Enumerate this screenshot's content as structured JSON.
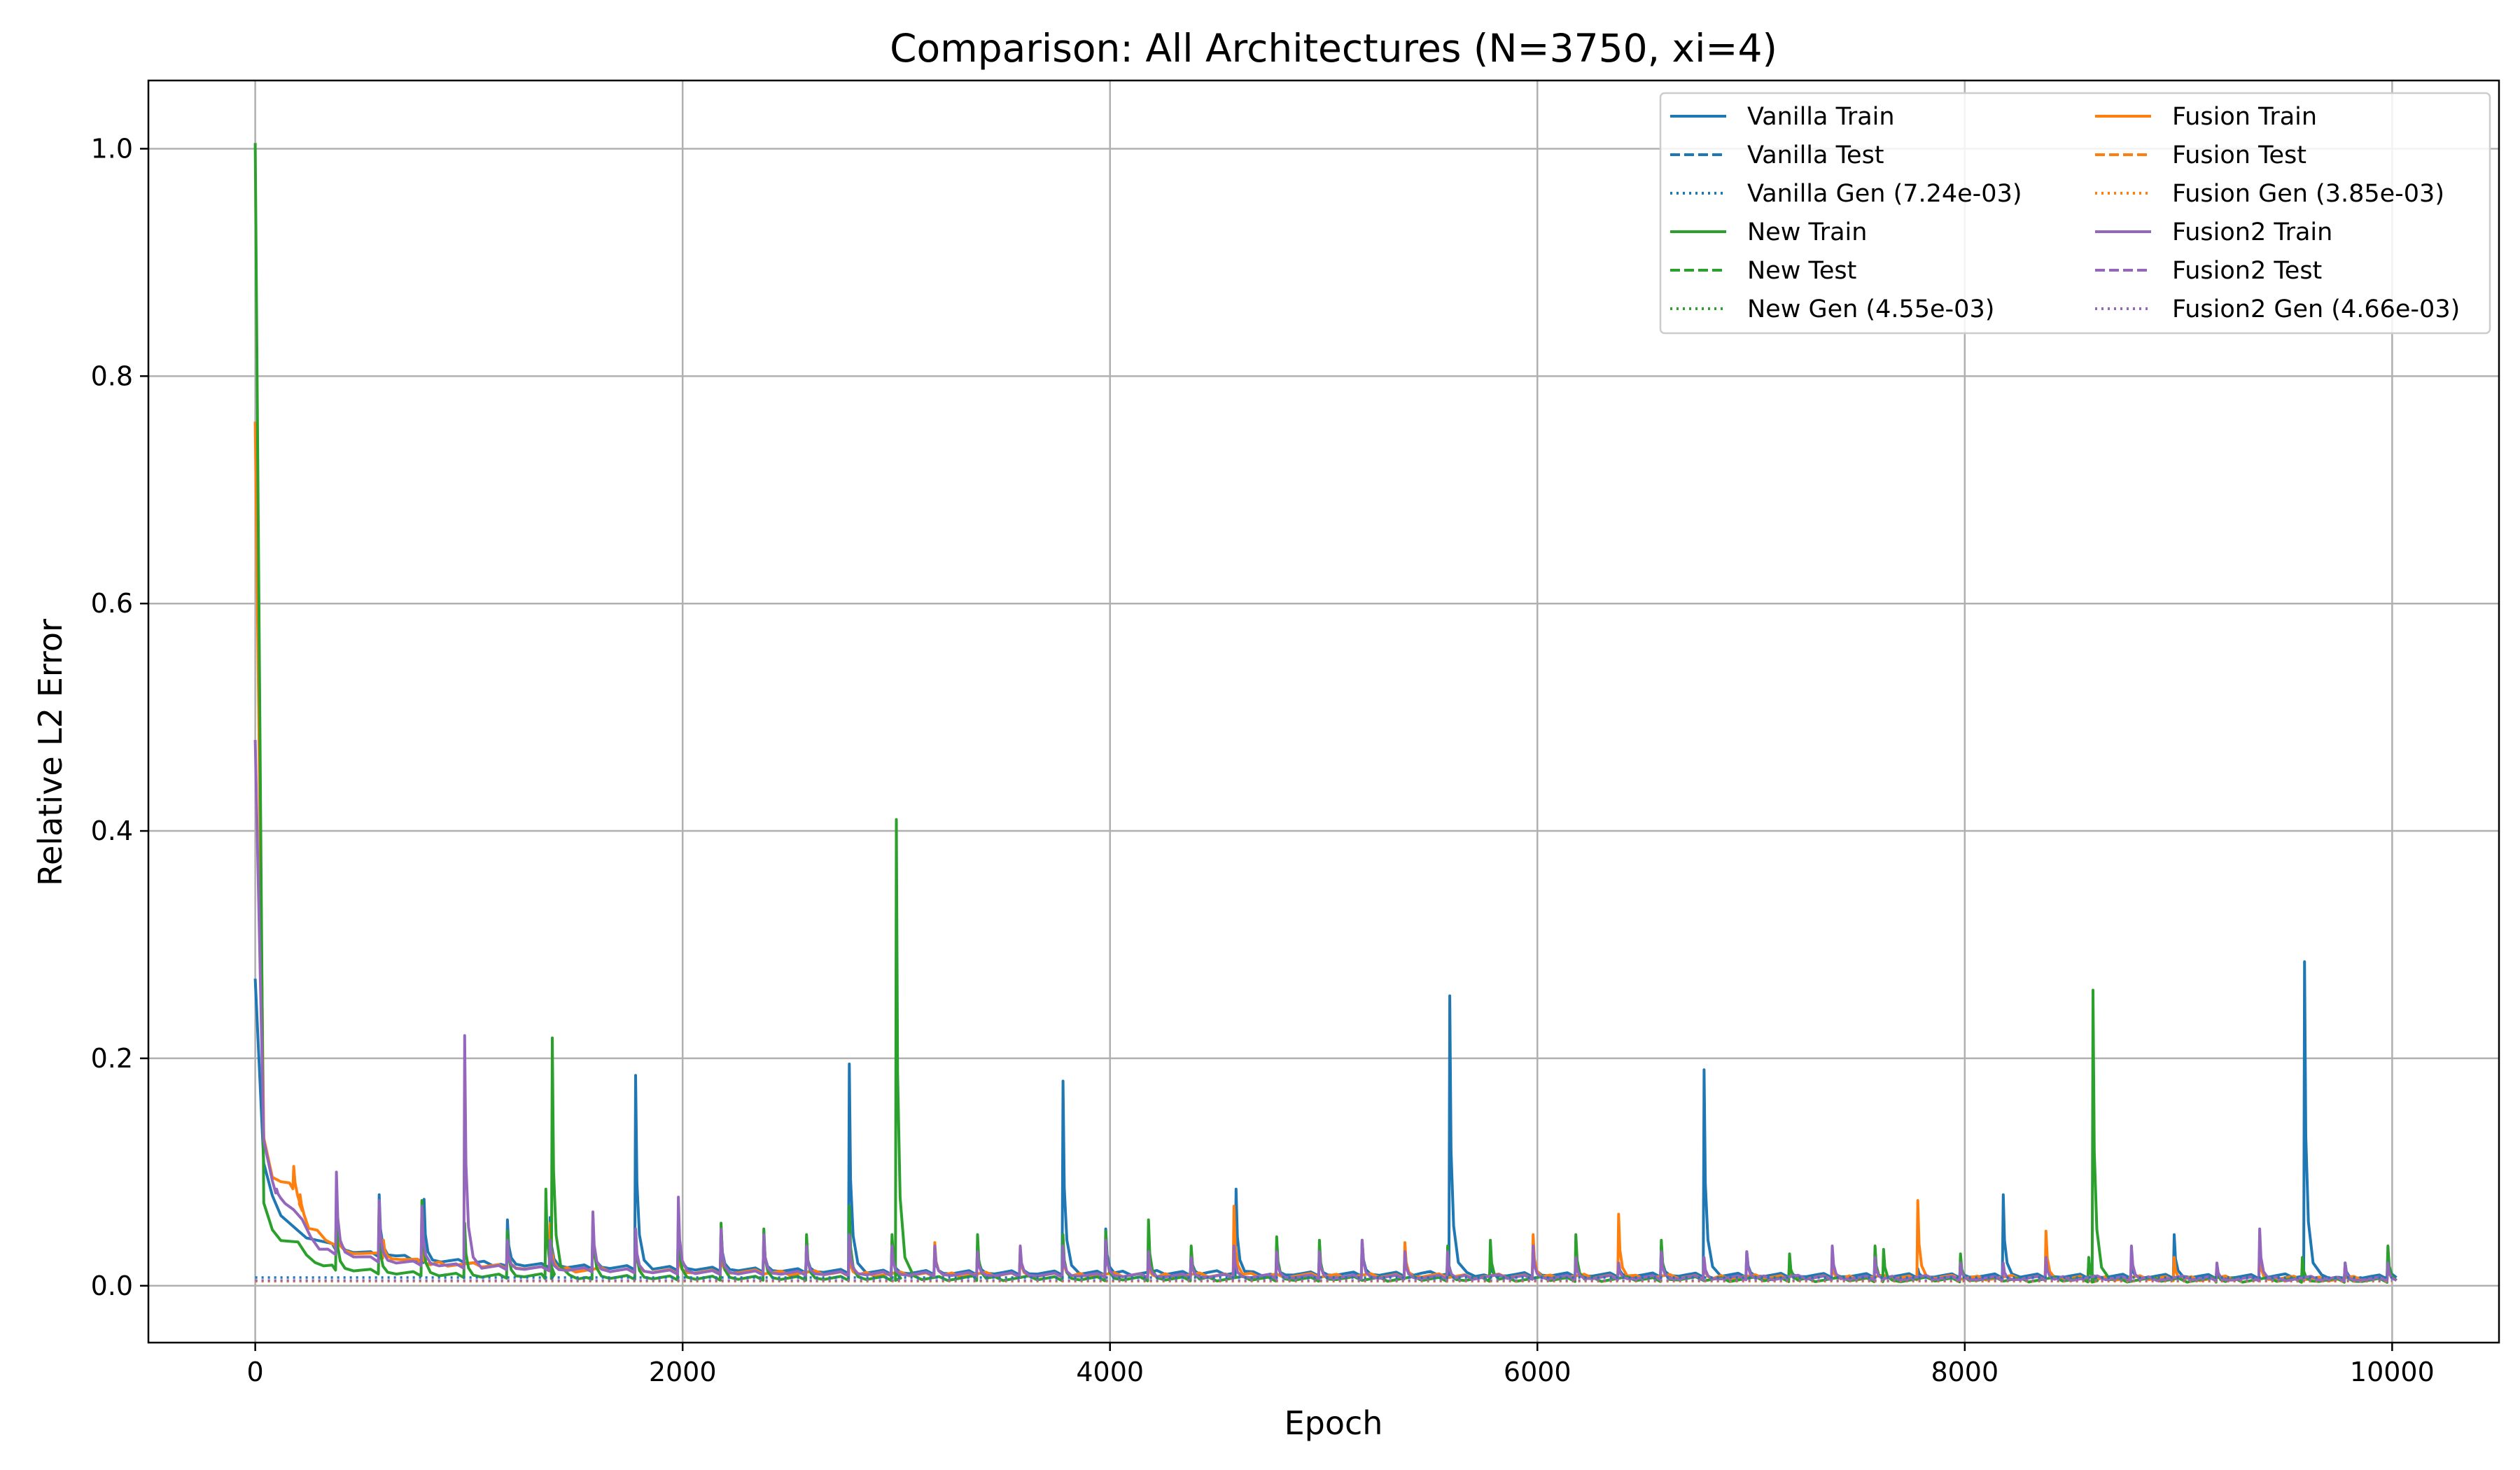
{
  "chart_data": {
    "type": "line",
    "title": "Comparison: All Architectures (N=3750, xi=4)",
    "xlabel": "Epoch",
    "ylabel": "Relative L2 Error",
    "xlim": [
      -500,
      10500
    ],
    "ylim": [
      -0.05,
      1.06
    ],
    "xticks": [
      0,
      2000,
      4000,
      6000,
      8000,
      10000
    ],
    "xtick_labels": [
      "0",
      "2000",
      "4000",
      "6000",
      "8000",
      "10000"
    ],
    "yticks": [
      0.0,
      0.2,
      0.4,
      0.6,
      0.8,
      1.0
    ],
    "ytick_labels": [
      "0.0",
      "0.2",
      "0.4",
      "0.6",
      "0.8",
      "1.0"
    ],
    "grid": true,
    "legend_position": "top-right",
    "legend_columns": 2,
    "colors": {
      "vanilla": "#1f77b4",
      "fusion": "#ff7f0e",
      "new": "#2ca02c",
      "fusion2": "#9467bd"
    },
    "legend": [
      {
        "label": "Vanilla Train",
        "color": "#1f77b4",
        "style": "solid"
      },
      {
        "label": "Vanilla Test",
        "color": "#1f77b4",
        "style": "dashed"
      },
      {
        "label": "Vanilla Gen (7.24e-03)",
        "color": "#1f77b4",
        "style": "dotted"
      },
      {
        "label": "New Train",
        "color": "#2ca02c",
        "style": "solid"
      },
      {
        "label": "New Test",
        "color": "#2ca02c",
        "style": "dashed"
      },
      {
        "label": "New Gen (4.55e-03)",
        "color": "#2ca02c",
        "style": "dotted"
      },
      {
        "label": "Fusion Train",
        "color": "#ff7f0e",
        "style": "solid"
      },
      {
        "label": "Fusion Test",
        "color": "#ff7f0e",
        "style": "dashed"
      },
      {
        "label": "Fusion Gen (3.85e-03)",
        "color": "#ff7f0e",
        "style": "dotted"
      },
      {
        "label": "Fusion2 Train",
        "color": "#9467bd",
        "style": "solid"
      },
      {
        "label": "Fusion2 Test",
        "color": "#9467bd",
        "style": "dashed"
      },
      {
        "label": "Fusion2 Gen (4.66e-03)",
        "color": "#9467bd",
        "style": "dotted"
      }
    ],
    "series": [
      {
        "name": "Vanilla Train",
        "color": "#1f77b4",
        "style": "solid",
        "start": 0.27,
        "early": [
          [
            10,
            0.15
          ],
          [
            50,
            0.09
          ],
          [
            100,
            0.065
          ],
          [
            200,
            0.045
          ],
          [
            400,
            0.03
          ],
          [
            800,
            0.02
          ],
          [
            1500,
            0.015
          ],
          [
            3000,
            0.01
          ],
          [
            6000,
            0.008
          ],
          [
            10000,
            0.006
          ]
        ],
        "spikes": [
          [
            380,
            0.07
          ],
          [
            580,
            0.08
          ],
          [
            790,
            0.076
          ],
          [
            1180,
            0.058
          ],
          [
            1380,
            0.06
          ],
          [
            1580,
            0.05
          ],
          [
            1780,
            0.185
          ],
          [
            1980,
            0.055
          ],
          [
            2180,
            0.05
          ],
          [
            2380,
            0.04
          ],
          [
            2580,
            0.035
          ],
          [
            2780,
            0.195
          ],
          [
            2980,
            0.04
          ],
          [
            3180,
            0.03
          ],
          [
            3380,
            0.035
          ],
          [
            3580,
            0.03
          ],
          [
            3780,
            0.18
          ],
          [
            3980,
            0.05
          ],
          [
            4380,
            0.03
          ],
          [
            4590,
            0.085
          ],
          [
            4780,
            0.025
          ],
          [
            4980,
            0.025
          ],
          [
            5180,
            0.04
          ],
          [
            5380,
            0.025
          ],
          [
            5590,
            0.255
          ],
          [
            5780,
            0.02
          ],
          [
            5980,
            0.035
          ],
          [
            6180,
            0.02
          ],
          [
            6380,
            0.02
          ],
          [
            6580,
            0.035
          ],
          [
            6780,
            0.19
          ],
          [
            6980,
            0.03
          ],
          [
            7180,
            0.02
          ],
          [
            7380,
            0.02
          ],
          [
            7580,
            0.02
          ],
          [
            7780,
            0.015
          ],
          [
            7980,
            0.02
          ],
          [
            8180,
            0.08
          ],
          [
            8380,
            0.03
          ],
          [
            8580,
            0.02
          ],
          [
            8780,
            0.02
          ],
          [
            8980,
            0.045
          ],
          [
            9180,
            0.015
          ],
          [
            9380,
            0.03
          ],
          [
            9590,
            0.285
          ],
          [
            9780,
            0.02
          ],
          [
            9980,
            0.03
          ]
        ]
      },
      {
        "name": "Fusion Train",
        "color": "#ff7f0e",
        "style": "solid",
        "start": 0.76,
        "early": [
          [
            10,
            0.22
          ],
          [
            50,
            0.1
          ],
          [
            100,
            0.09
          ],
          [
            180,
            0.085
          ],
          [
            250,
            0.05
          ],
          [
            400,
            0.03
          ],
          [
            800,
            0.018
          ],
          [
            1500,
            0.012
          ],
          [
            3000,
            0.008
          ],
          [
            6000,
            0.006
          ],
          [
            10000,
            0.004
          ]
        ],
        "spikes": [
          [
            180,
            0.105
          ],
          [
            210,
            0.08
          ],
          [
            380,
            0.06
          ],
          [
            600,
            0.04
          ],
          [
            780,
            0.03
          ],
          [
            1180,
            0.04
          ],
          [
            1380,
            0.055
          ],
          [
            1780,
            0.04
          ],
          [
            1980,
            0.03
          ],
          [
            2180,
            0.03
          ],
          [
            2780,
            0.03
          ],
          [
            3180,
            0.038
          ],
          [
            3580,
            0.03
          ],
          [
            3780,
            0.03
          ],
          [
            4180,
            0.02
          ],
          [
            4580,
            0.07
          ],
          [
            5380,
            0.038
          ],
          [
            5980,
            0.045
          ],
          [
            6380,
            0.063
          ],
          [
            6780,
            0.02
          ],
          [
            7180,
            0.015
          ],
          [
            7380,
            0.02
          ],
          [
            7780,
            0.075
          ],
          [
            8380,
            0.048
          ],
          [
            8580,
            0.02
          ],
          [
            8980,
            0.025
          ],
          [
            9380,
            0.03
          ],
          [
            9980,
            0.02
          ]
        ]
      },
      {
        "name": "New Train",
        "color": "#2ca02c",
        "style": "solid",
        "start": 1.005,
        "early": [
          [
            10,
            0.2
          ],
          [
            30,
            0.08
          ],
          [
            60,
            0.05
          ],
          [
            100,
            0.04
          ],
          [
            200,
            0.035
          ],
          [
            300,
            0.015
          ],
          [
            600,
            0.01
          ],
          [
            1000,
            0.007
          ],
          [
            2000,
            0.005
          ],
          [
            5000,
            0.004
          ],
          [
            10000,
            0.003
          ]
        ],
        "spikes": [
          [
            380,
            0.06
          ],
          [
            580,
            0.05
          ],
          [
            780,
            0.075
          ],
          [
            980,
            0.055
          ],
          [
            1180,
            0.048
          ],
          [
            1360,
            0.085
          ],
          [
            1390,
            0.218
          ],
          [
            1580,
            0.06
          ],
          [
            1780,
            0.05
          ],
          [
            1980,
            0.058
          ],
          [
            2180,
            0.055
          ],
          [
            2380,
            0.05
          ],
          [
            2580,
            0.045
          ],
          [
            2780,
            0.07
          ],
          [
            2980,
            0.045
          ],
          [
            3000,
            0.41
          ],
          [
            3380,
            0.045
          ],
          [
            3780,
            0.045
          ],
          [
            3980,
            0.048
          ],
          [
            4180,
            0.058
          ],
          [
            4380,
            0.035
          ],
          [
            4780,
            0.043
          ],
          [
            4980,
            0.04
          ],
          [
            5580,
            0.035
          ],
          [
            5780,
            0.04
          ],
          [
            6180,
            0.045
          ],
          [
            6580,
            0.04
          ],
          [
            7180,
            0.028
          ],
          [
            7580,
            0.035
          ],
          [
            7620,
            0.032
          ],
          [
            7980,
            0.028
          ],
          [
            8580,
            0.025
          ],
          [
            8600,
            0.26
          ],
          [
            9180,
            0.015
          ],
          [
            9580,
            0.025
          ],
          [
            9780,
            0.02
          ],
          [
            9980,
            0.035
          ]
        ]
      },
      {
        "name": "Fusion2 Train",
        "color": "#9467bd",
        "style": "solid",
        "start": 0.48,
        "early": [
          [
            10,
            0.2
          ],
          [
            50,
            0.1
          ],
          [
            100,
            0.08
          ],
          [
            200,
            0.06
          ],
          [
            300,
            0.03
          ],
          [
            600,
            0.02
          ],
          [
            1000,
            0.015
          ],
          [
            2000,
            0.01
          ],
          [
            5000,
            0.006
          ],
          [
            10000,
            0.004
          ]
        ],
        "spikes": [
          [
            100,
            0.085
          ],
          [
            380,
            0.1
          ],
          [
            580,
            0.075
          ],
          [
            780,
            0.07
          ],
          [
            980,
            0.22
          ],
          [
            1180,
            0.04
          ],
          [
            1380,
            0.04
          ],
          [
            1580,
            0.065
          ],
          [
            1780,
            0.05
          ],
          [
            1980,
            0.078
          ],
          [
            2180,
            0.05
          ],
          [
            2380,
            0.045
          ],
          [
            2580,
            0.035
          ],
          [
            2780,
            0.045
          ],
          [
            2980,
            0.035
          ],
          [
            3180,
            0.035
          ],
          [
            3380,
            0.03
          ],
          [
            3580,
            0.035
          ],
          [
            3780,
            0.035
          ],
          [
            3980,
            0.04
          ],
          [
            4180,
            0.03
          ],
          [
            4380,
            0.025
          ],
          [
            4580,
            0.035
          ],
          [
            4780,
            0.03
          ],
          [
            4980,
            0.03
          ],
          [
            5180,
            0.04
          ],
          [
            5380,
            0.03
          ],
          [
            5580,
            0.03
          ],
          [
            5980,
            0.035
          ],
          [
            6180,
            0.025
          ],
          [
            6380,
            0.02
          ],
          [
            6580,
            0.03
          ],
          [
            6780,
            0.025
          ],
          [
            6980,
            0.03
          ],
          [
            7380,
            0.035
          ],
          [
            7580,
            0.025
          ],
          [
            7980,
            0.02
          ],
          [
            8180,
            0.02
          ],
          [
            8380,
            0.025
          ],
          [
            8780,
            0.035
          ],
          [
            9180,
            0.02
          ],
          [
            9380,
            0.05
          ],
          [
            9780,
            0.02
          ],
          [
            9980,
            0.02
          ]
        ]
      },
      {
        "name": "Vanilla Gen (7.24e-03)",
        "color": "#1f77b4",
        "style": "dotted",
        "constant": 0.00724
      },
      {
        "name": "New Gen (4.55e-03)",
        "color": "#2ca02c",
        "style": "dotted",
        "constant": 0.00455
      },
      {
        "name": "Fusion Gen (3.85e-03)",
        "color": "#ff7f0e",
        "style": "dotted",
        "constant": 0.00385
      },
      {
        "name": "Fusion2 Gen (4.66e-03)",
        "color": "#9467bd",
        "style": "dotted",
        "constant": 0.00466
      }
    ]
  }
}
